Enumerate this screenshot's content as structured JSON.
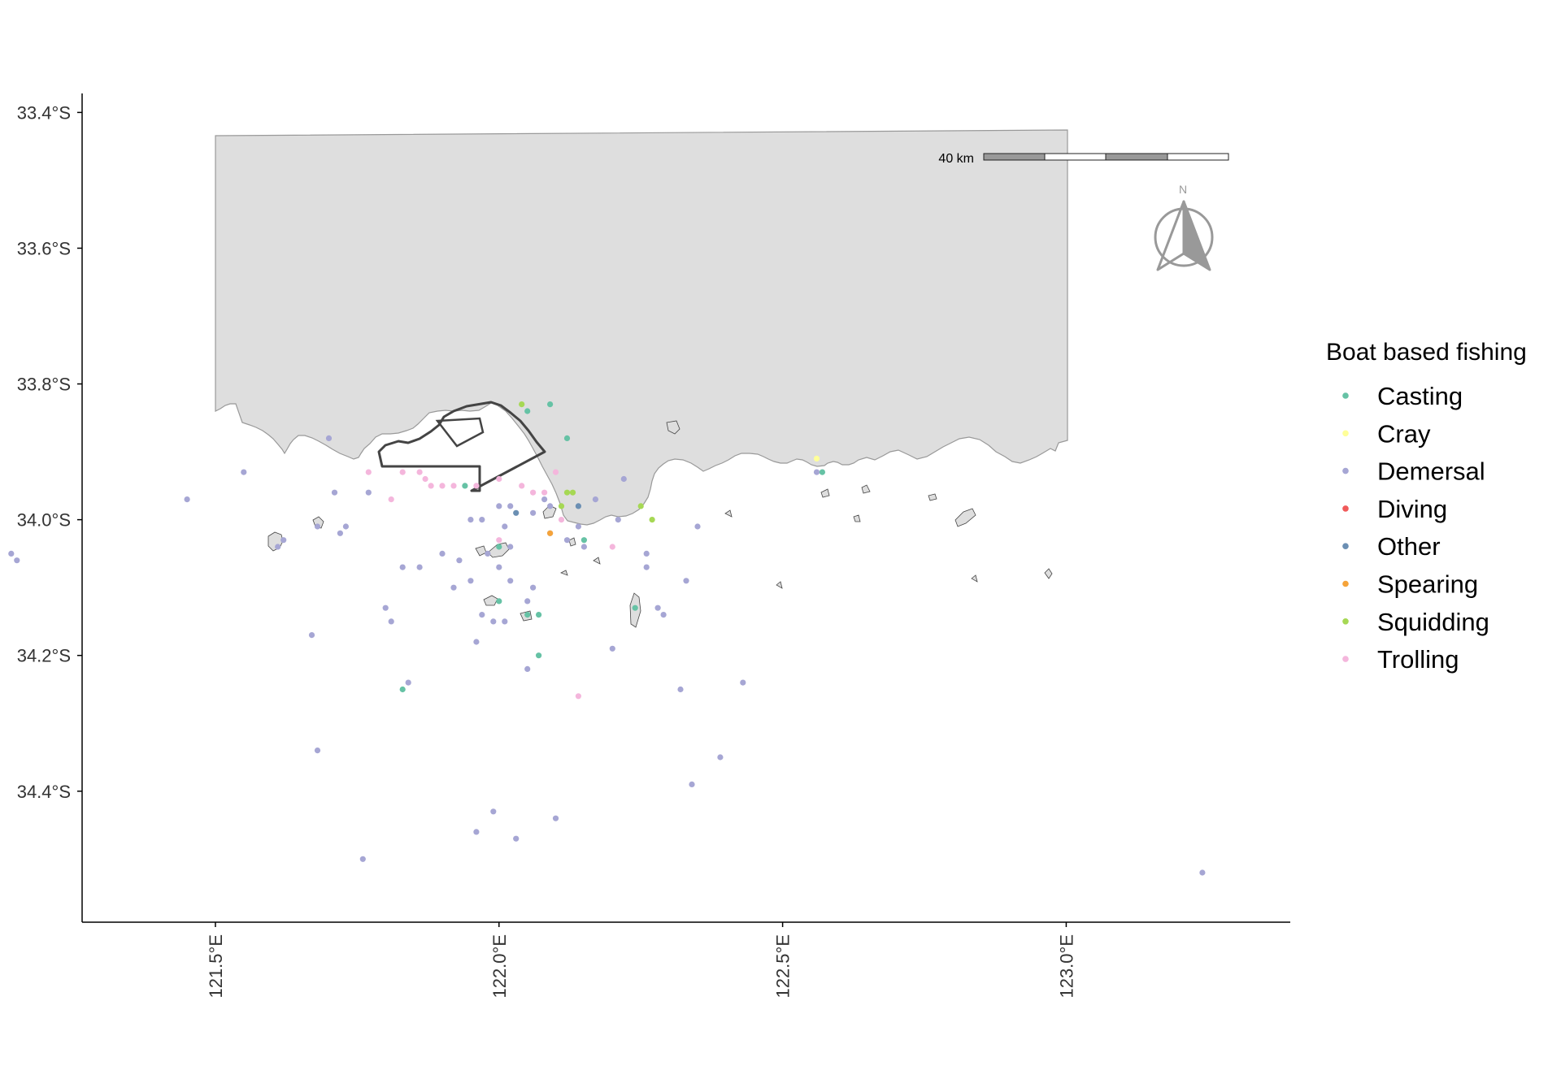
{
  "chart_data": {
    "type": "scatter",
    "title": "",
    "xlabel": "",
    "ylabel": "",
    "xlim": [
      121.265,
      123.395
    ],
    "ylim": [
      -34.593,
      -33.372
    ],
    "x_ticks": [
      {
        "value": 121.5,
        "label": "121.5°E"
      },
      {
        "value": 122.0,
        "label": "122.0°E"
      },
      {
        "value": 122.5,
        "label": "122.5°E"
      },
      {
        "value": 123.0,
        "label": "123.0°E"
      }
    ],
    "y_ticks": [
      {
        "value": -33.4,
        "label": "33.4°S"
      },
      {
        "value": -33.6,
        "label": "33.6°S"
      },
      {
        "value": -33.8,
        "label": "33.8°S"
      },
      {
        "value": -34.0,
        "label": "34.0°S"
      },
      {
        "value": -34.2,
        "label": "34.2°S"
      },
      {
        "value": -34.4,
        "label": "34.4°S"
      }
    ],
    "legend": {
      "title": "Boat based fishing",
      "position": "right",
      "items": [
        {
          "label": "Casting",
          "color": "#66c2a5"
        },
        {
          "label": "Cray",
          "color": "#ffff99"
        },
        {
          "label": "Demersal",
          "color": "#a6a6d4"
        },
        {
          "label": "Diving",
          "color": "#f05a5a"
        },
        {
          "label": "Other",
          "color": "#6b8fb3"
        },
        {
          "label": "Spearing",
          "color": "#f5a33a"
        },
        {
          "label": "Squidding",
          "color": "#a6d854"
        },
        {
          "label": "Trolling",
          "color": "#f4b6dc"
        }
      ]
    },
    "scale_bar": {
      "label": "40 km"
    },
    "north_arrow": {
      "label": "N"
    },
    "grid": false,
    "series": [
      {
        "name": "Casting",
        "points": [
          [
            122.15,
            -34.03
          ],
          [
            122.07,
            -34.14
          ],
          [
            121.94,
            -33.95
          ],
          [
            122.0,
            -34.12
          ],
          [
            122.05,
            -33.84
          ],
          [
            122.12,
            -33.88
          ],
          [
            122.09,
            -33.83
          ],
          [
            121.83,
            -34.25
          ],
          [
            122.0,
            -34.04
          ],
          [
            122.07,
            -34.2
          ],
          [
            122.24,
            -34.13
          ],
          [
            122.57,
            -33.93
          ],
          [
            122.05,
            -34.14
          ]
        ]
      },
      {
        "name": "Cray",
        "points": [
          [
            122.56,
            -33.91
          ]
        ]
      },
      {
        "name": "Demersal",
        "points": [
          [
            121.14,
            -34.05
          ],
          [
            121.15,
            -34.06
          ],
          [
            121.45,
            -33.97
          ],
          [
            121.55,
            -33.93
          ],
          [
            121.62,
            -34.03
          ],
          [
            121.61,
            -34.04
          ],
          [
            121.68,
            -34.01
          ],
          [
            121.72,
            -34.02
          ],
          [
            121.73,
            -34.01
          ],
          [
            121.7,
            -33.88
          ],
          [
            121.71,
            -33.96
          ],
          [
            121.67,
            -34.17
          ],
          [
            121.68,
            -34.34
          ],
          [
            121.76,
            -34.5
          ],
          [
            121.77,
            -33.96
          ],
          [
            121.8,
            -34.13
          ],
          [
            121.83,
            -34.07
          ],
          [
            121.84,
            -34.24
          ],
          [
            121.81,
            -34.15
          ],
          [
            121.86,
            -34.07
          ],
          [
            121.9,
            -34.05
          ],
          [
            121.92,
            -34.1
          ],
          [
            121.93,
            -34.06
          ],
          [
            121.95,
            -34.09
          ],
          [
            121.97,
            -34.14
          ],
          [
            121.96,
            -34.18
          ],
          [
            121.99,
            -34.15
          ],
          [
            121.98,
            -34.05
          ],
          [
            122.0,
            -34.07
          ],
          [
            122.02,
            -34.04
          ],
          [
            122.02,
            -34.09
          ],
          [
            122.01,
            -34.15
          ],
          [
            122.05,
            -34.22
          ],
          [
            122.05,
            -34.12
          ],
          [
            122.06,
            -34.1
          ],
          [
            121.97,
            -34.0
          ],
          [
            122.01,
            -34.01
          ],
          [
            122.02,
            -33.98
          ],
          [
            122.08,
            -33.97
          ],
          [
            122.09,
            -33.98
          ],
          [
            122.09,
            -34.02
          ],
          [
            122.12,
            -34.03
          ],
          [
            122.15,
            -34.04
          ],
          [
            122.14,
            -34.01
          ],
          [
            122.21,
            -34.0
          ],
          [
            122.26,
            -34.05
          ],
          [
            122.17,
            -33.97
          ],
          [
            122.22,
            -33.94
          ],
          [
            122.26,
            -34.07
          ],
          [
            122.28,
            -34.13
          ],
          [
            122.29,
            -34.14
          ],
          [
            122.2,
            -34.19
          ],
          [
            122.33,
            -34.09
          ],
          [
            122.32,
            -34.25
          ],
          [
            122.39,
            -34.35
          ],
          [
            122.34,
            -34.39
          ],
          [
            121.99,
            -34.43
          ],
          [
            121.96,
            -34.46
          ],
          [
            122.1,
            -34.44
          ],
          [
            122.03,
            -34.47
          ],
          [
            122.43,
            -34.24
          ],
          [
            122.35,
            -34.01
          ],
          [
            122.56,
            -33.93
          ],
          [
            123.24,
            -34.52
          ],
          [
            122.06,
            -33.99
          ],
          [
            121.95,
            -34.0
          ],
          [
            122.0,
            -33.98
          ]
        ]
      },
      {
        "name": "Other",
        "points": [
          [
            122.14,
            -33.98
          ],
          [
            122.03,
            -33.99
          ]
        ]
      },
      {
        "name": "Spearing",
        "points": [
          [
            122.09,
            -34.02
          ]
        ]
      },
      {
        "name": "Squidding",
        "points": [
          [
            122.11,
            -33.98
          ],
          [
            122.25,
            -33.98
          ],
          [
            122.27,
            -34.0
          ],
          [
            122.04,
            -33.83
          ],
          [
            122.12,
            -33.96
          ],
          [
            122.13,
            -33.96
          ]
        ]
      },
      {
        "name": "Trolling",
        "points": [
          [
            121.77,
            -33.93
          ],
          [
            121.81,
            -33.97
          ],
          [
            121.83,
            -33.93
          ],
          [
            121.86,
            -33.93
          ],
          [
            121.87,
            -33.94
          ],
          [
            121.88,
            -33.95
          ],
          [
            121.9,
            -33.95
          ],
          [
            121.92,
            -33.95
          ],
          [
            121.96,
            -33.95
          ],
          [
            122.0,
            -33.94
          ],
          [
            122.04,
            -33.95
          ],
          [
            122.06,
            -33.96
          ],
          [
            122.08,
            -33.96
          ],
          [
            122.1,
            -33.93
          ],
          [
            122.11,
            -34.0
          ],
          [
            122.0,
            -34.03
          ],
          [
            122.14,
            -34.26
          ],
          [
            122.2,
            -34.04
          ]
        ]
      }
    ]
  }
}
